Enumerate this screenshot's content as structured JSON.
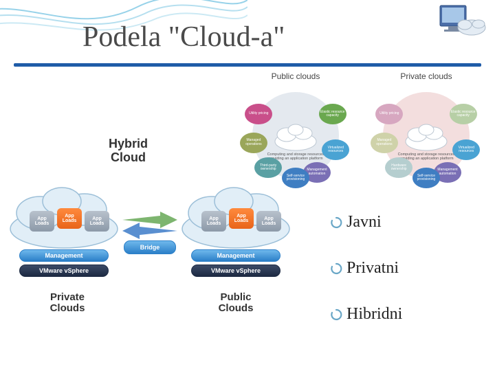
{
  "title": "Podela \"Cloud-a\"",
  "colors": {
    "title_color": "#4a4a4a",
    "title_fontsize": 42,
    "underline_color": "#1f5ca8",
    "background": "#ffffff",
    "wave_stroke": "#6bbfe0"
  },
  "ring_diagrams": {
    "public": {
      "title": "Public clouds",
      "ring_bg_color": "#e4e9ef",
      "center_caption": "Computing and storage resources providing an application platform",
      "petals": [
        {
          "label": "Utility pricing",
          "color": "#c94f8a",
          "angle": -60
        },
        {
          "label": "Elastic resource capacity",
          "color": "#6aa84f",
          "angle": 60
        },
        {
          "label": "Virtualized resources",
          "color": "#4aa3d3",
          "angle": 110
        },
        {
          "label": "Management automation",
          "color": "#7a6fb5",
          "angle": 150
        },
        {
          "label": "Self-service provisioning",
          "color": "#3f7ec2",
          "angle": 180
        },
        {
          "label": "Third-party ownership",
          "color": "#5aa0a3",
          "angle": 220
        },
        {
          "label": "Managed operations",
          "color": "#9aa65a",
          "angle": 260
        }
      ]
    },
    "private": {
      "title": "Private clouds",
      "ring_bg_color": "#f3dede",
      "center_caption": "Computing and storage resources providing an application platform",
      "petals": [
        {
          "label": "Utility pricing",
          "color": "#d7a7c0",
          "angle": -60
        },
        {
          "label": "Elastic resource capacity",
          "color": "#b7cfa6",
          "angle": 60
        },
        {
          "label": "Virtualized resources",
          "color": "#4aa3d3",
          "angle": 110
        },
        {
          "label": "Management automation",
          "color": "#7a6fb5",
          "angle": 150
        },
        {
          "label": "Self-service provisioning",
          "color": "#3f7ec2",
          "angle": 180
        },
        {
          "label": "Hardware ownership",
          "color": "#b5cecf",
          "angle": 220
        },
        {
          "label": "Managed operations",
          "color": "#cfd2a9",
          "angle": 260
        }
      ]
    }
  },
  "hybrid": {
    "title": "Hybrid\nCloud",
    "left_caption": "Private\nClouds",
    "right_caption": "Public\nClouds",
    "bridge_label": "Bridge",
    "pill_top": "Management",
    "pill_bottom": "VMware vSphere",
    "app_loads_label": "App\nLoads",
    "cloud_fill": "#e1eef7",
    "cloud_stroke": "#9cbfd8",
    "arrow_colors": {
      "left": "#7db56f",
      "right": "#5a8fd0"
    }
  },
  "bullets": [
    {
      "label": "Javni"
    },
    {
      "label": "Privatni"
    },
    {
      "label": "Hibridni"
    }
  ],
  "bullet_style": {
    "fontsize": 24,
    "color": "#222222",
    "swirl_color": "#6aa7c7"
  }
}
